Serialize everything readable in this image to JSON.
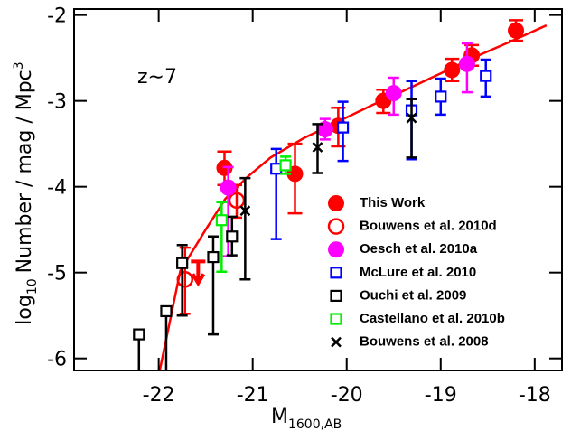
{
  "chart_data": {
    "type": "errorbar-scatter",
    "annotation": "z∼7",
    "xlabel": {
      "main": "M",
      "sub": "1600,AB"
    },
    "ylabel": {
      "main": "log",
      "sub": "10",
      "rest": "Number  /  mag  /  Mpc",
      "sup": "3"
    },
    "xlim": [
      -22.9,
      -17.71
    ],
    "ylim": [
      -6.14,
      -1.93
    ],
    "xticks": [
      -22,
      -21,
      -20,
      -19,
      -18
    ],
    "yticks": [
      -6,
      -5,
      -4,
      -3,
      -2
    ],
    "series": [
      {
        "name": "This Work",
        "color": "#ff0000",
        "marker": "filled-circle",
        "x": [
          -21.3,
          -20.55,
          -20.09,
          -19.61,
          -18.88,
          -18.67,
          -18.2
        ],
        "values": [
          -3.78,
          -3.85,
          -3.29,
          -3.0,
          -2.64,
          -2.47,
          -2.18
        ],
        "err_lo": [
          0.2,
          0.46,
          0.24,
          0.14,
          0.13,
          0.12,
          0.12
        ],
        "err_hi": [
          0.19,
          0.35,
          0.21,
          0.13,
          0.13,
          0.12,
          0.12
        ],
        "upper_limit": {
          "x": -21.58,
          "y": -4.87
        }
      },
      {
        "name": "Bouwens et al. 2010d",
        "color": "#ff0000",
        "marker": "open-circle",
        "x": [
          -21.72,
          -21.17
        ],
        "values": [
          -5.08,
          -4.16
        ],
        "err_lo": [
          0.4,
          0.2
        ],
        "err_hi": [
          0.37,
          0.18
        ]
      },
      {
        "name": "Oesch et al. 2010a",
        "color": "#ff00ff",
        "marker": "filled-circle",
        "x": [
          -21.26,
          -20.23,
          -19.5,
          -18.72
        ],
        "values": [
          -4.01,
          -3.33,
          -2.91,
          -2.57
        ],
        "err_lo": [
          0.8,
          0.12,
          0.25,
          0.33
        ],
        "err_hi": [
          0.24,
          0.12,
          0.18,
          0.24
        ]
      },
      {
        "name": "McLure et al. 2010",
        "color": "#0000ff",
        "marker": "open-square",
        "x": [
          -20.75,
          -20.04,
          -19.31,
          -19.0,
          -18.52
        ],
        "values": [
          -3.79,
          -3.31,
          -3.11,
          -2.95,
          -2.71
        ],
        "err_lo": [
          0.82,
          0.39,
          0.57,
          0.21,
          0.24
        ],
        "err_hi": [
          0.23,
          0.3,
          0.34,
          0.21,
          0.19
        ]
      },
      {
        "name": "Ouchi et al. 2009",
        "color": "#000000",
        "marker": "open-square",
        "x": [
          -22.21,
          -21.92,
          -21.75,
          -21.42,
          -21.22
        ],
        "values": [
          -5.72,
          -5.45,
          -4.89,
          -4.82,
          -4.58
        ],
        "err_lo": [
          1.0,
          1.0,
          0.61,
          0.9,
          0.22
        ],
        "err_hi": [
          0.0,
          0.0,
          0.21,
          0.24,
          0.23
        ]
      },
      {
        "name": "Castellano et al. 2010b",
        "color": "#00ee00",
        "marker": "open-square",
        "x": [
          -21.33,
          -20.65
        ],
        "values": [
          -4.39,
          -3.75
        ],
        "err_lo": [
          0.6,
          0.1
        ],
        "err_hi": [
          0.21,
          0.1
        ]
      },
      {
        "name": "Bouwens et al. 2008",
        "color": "#000000",
        "marker": "cross",
        "x": [
          -21.08,
          -20.31,
          -19.31
        ],
        "values": [
          -4.28,
          -3.54,
          -3.2
        ],
        "err_lo": [
          0.8,
          0.3,
          0.46
        ],
        "err_hi": [
          0.38,
          0.27,
          0.22
        ]
      }
    ],
    "fit": {
      "color": "#ff0000",
      "x": [
        -22.2,
        -22.0,
        -21.77,
        -21.5,
        -21.29,
        -21.05,
        -20.81,
        -20.45,
        -20.09,
        -19.73,
        -19.37,
        -19.0,
        -18.64,
        -18.26,
        -17.875
      ],
      "values": [
        -6.55,
        -6.2,
        -4.98,
        -4.5,
        -4.14,
        -3.88,
        -3.66,
        -3.43,
        -3.24,
        -3.05,
        -2.87,
        -2.68,
        -2.49,
        -2.31,
        -2.12
      ]
    },
    "legend": "right"
  }
}
